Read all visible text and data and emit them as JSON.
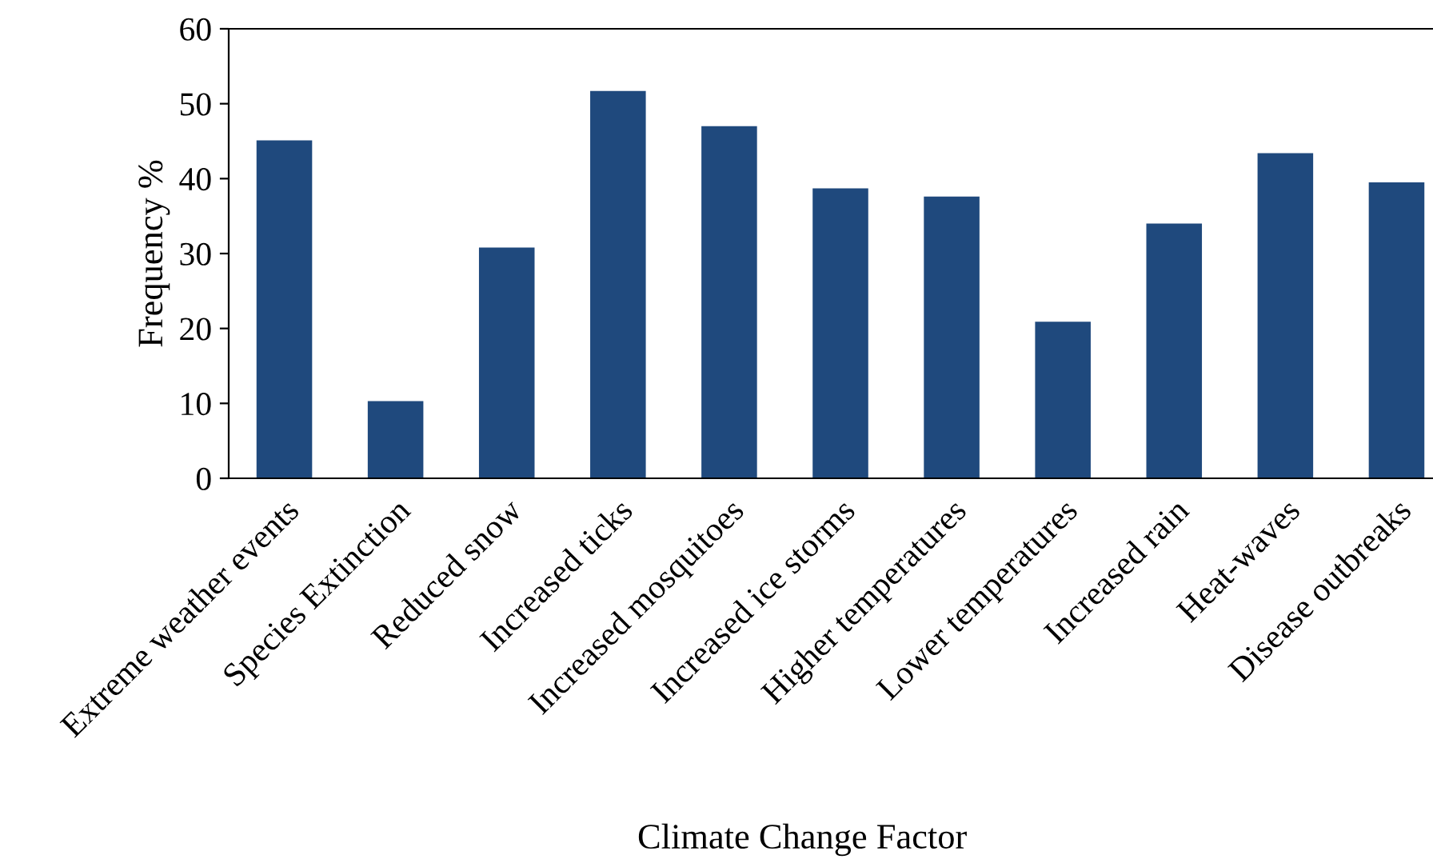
{
  "chart_data": {
    "type": "bar",
    "xlabel": "Climate Change Factor",
    "ylabel": "Frequency %",
    "categories": [
      "Extreme weather events",
      "Species Extinction",
      "Reduced snow",
      "Increased ticks",
      "Increased mosquitoes",
      "Increased ice storms",
      "Higher temperatures",
      "Lower temperatures",
      "Increased rain",
      "Heat-waves",
      "Disease outbreaks"
    ],
    "values": [
      45.1,
      10.3,
      30.8,
      51.7,
      47.0,
      38.7,
      37.6,
      20.9,
      34.0,
      43.4,
      39.5
    ],
    "color": "#1f497d",
    "ylim": [
      0,
      60
    ],
    "yticks": [
      0,
      10,
      20,
      30,
      40,
      50,
      60
    ],
    "grid": false
  }
}
